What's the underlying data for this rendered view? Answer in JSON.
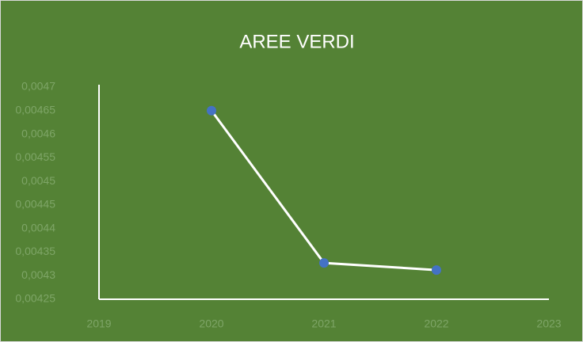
{
  "chart_data": {
    "type": "line",
    "title": "AREE VERDI",
    "x": [
      2020,
      2021,
      2022
    ],
    "series": [
      {
        "color": "#4472c4",
        "line_color": "#ffffff",
        "values": [
          0.00465,
          0.004327,
          0.004312
        ]
      }
    ],
    "xlim": [
      2019,
      2023
    ],
    "xticks": [
      2019,
      2020,
      2021,
      2022,
      2023
    ],
    "ylim": [
      0.00425,
      0.0047
    ],
    "yticks": [
      {
        "value": 0.00425,
        "label": "0,00425"
      },
      {
        "value": 0.0043,
        "label": "0,0043"
      },
      {
        "value": 0.00435,
        "label": "0,00435"
      },
      {
        "value": 0.0044,
        "label": "0,0044"
      },
      {
        "value": 0.00445,
        "label": "0,00445"
      },
      {
        "value": 0.0045,
        "label": "0,0045"
      },
      {
        "value": 0.00455,
        "label": "0,00455"
      },
      {
        "value": 0.0046,
        "label": "0,0046"
      },
      {
        "value": 0.00465,
        "label": "0,00465"
      },
      {
        "value": 0.0047,
        "label": "0,0047"
      }
    ],
    "grid": false
  }
}
